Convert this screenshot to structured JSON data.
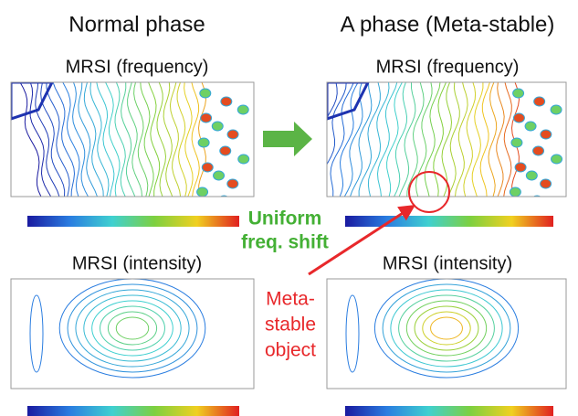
{
  "header": {
    "left": "Normal phase",
    "right": "A phase (Meta-stable)"
  },
  "panels": {
    "top_left": {
      "title": "MRSI (frequency)"
    },
    "top_right": {
      "title": "MRSI (frequency)"
    },
    "bottom_left": {
      "title": "MRSI (intensity)"
    },
    "bottom_right": {
      "title": "MRSI (intensity)"
    }
  },
  "annotations": {
    "shift": {
      "line1": "Uniform",
      "line2": "freq. shift"
    },
    "object": {
      "line1": "Meta-",
      "line2": "stable",
      "line3": "object"
    }
  }
}
